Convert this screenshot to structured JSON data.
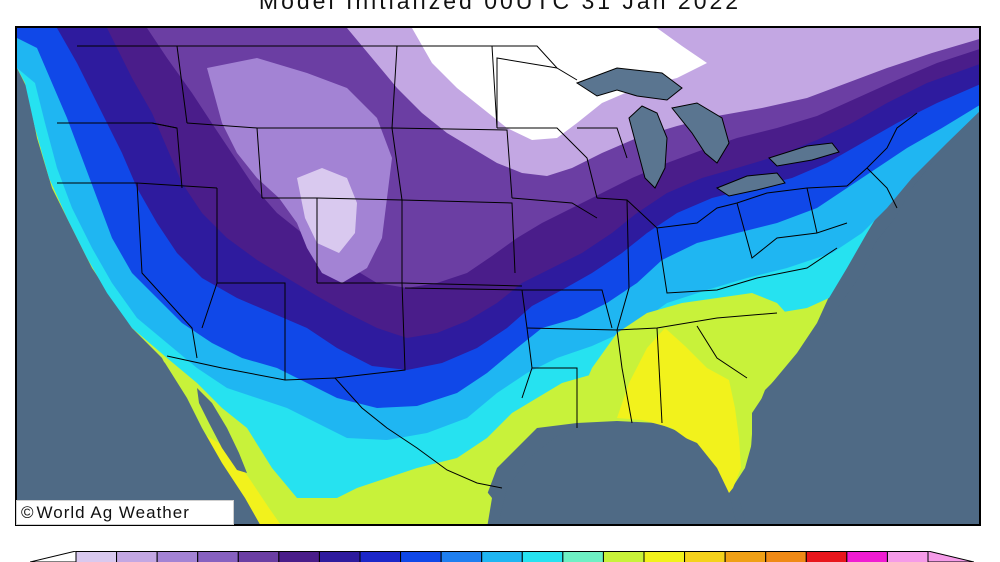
{
  "title": "Model Initialized 00UTC 31 Jan 2022",
  "watermark": {
    "symbol": "©",
    "text": "World Ag Weather"
  },
  "colors": {
    "ocean": "#4f6a85",
    "canada_lakes": "#5a7590",
    "snow_white": "#ffffff",
    "lavender_light": "#d9c9ef",
    "lavender": "#c3a7e3",
    "purple_light": "#a383d4",
    "purple": "#8761c0",
    "purple_dark": "#6b3ea3",
    "indigo_dark": "#4a1d8a",
    "navy": "#2e1b9e",
    "blue_deep": "#1c27c9",
    "blue": "#1048e8",
    "blue_mid": "#1f7ff0",
    "sky": "#1fb6f2",
    "cyan": "#26e2f0",
    "aquamarine": "#6ef0c4",
    "lime": "#c8f23a",
    "yellow": "#f2f21c",
    "orange": "#f08a16",
    "red": "#e8161c",
    "magenta": "#f01cd2",
    "pink": "#f59be8"
  },
  "colorbar_colors": [
    "#d9c9ef",
    "#c3a7e3",
    "#a383d4",
    "#8761c0",
    "#6b3ea3",
    "#4a1d8a",
    "#2e1b9e",
    "#1c27c9",
    "#1048e8",
    "#1f7ff0",
    "#1fb6f2",
    "#26e2f0",
    "#6ef0c4",
    "#c8f23a",
    "#f2f21c",
    "#f5d21c",
    "#f0a016",
    "#f08a16",
    "#e8161c",
    "#f01cd2",
    "#f59be8"
  ]
}
